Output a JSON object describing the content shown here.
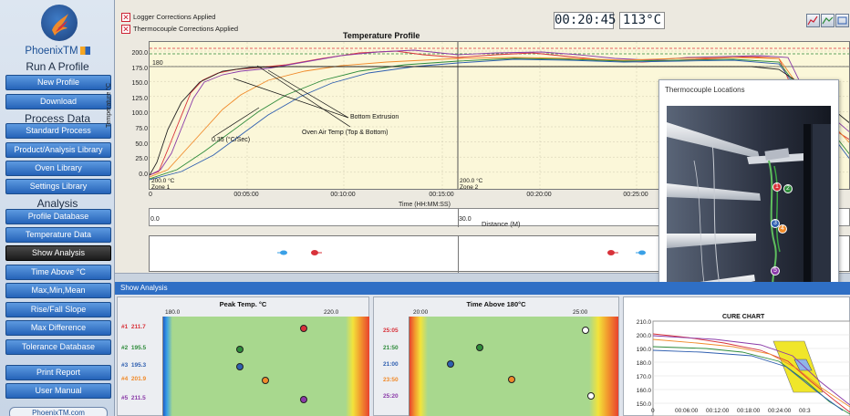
{
  "sidebar": {
    "brand": "PhoenixTM",
    "section_run": "Run A Profile",
    "new_profile": "New Profile",
    "download": "Download",
    "section_process": "Process Data",
    "standard_process": "Standard Process",
    "product_library": "Product/Analysis Library",
    "oven_library": "Oven Library",
    "settings_library": "Settings Library",
    "section_analysis": "Analysis",
    "profile_database": "Profile Database",
    "temperature_data": "Temperature Data",
    "show_analysis": "Show Analysis",
    "time_above": "Time Above °C",
    "max_min_mean": "Max,Min,Mean",
    "rise_fall": "Rise/Fall Slope",
    "max_difference": "Max Difference",
    "tolerance_db": "Tolerance Database",
    "print_report": "Print Report",
    "user_manual": "User Manual",
    "footer_link": "PhoenixTM.com"
  },
  "toolbar": {
    "logger_corrections": "Logger Corrections Applied",
    "thermocouple_corrections": "Thermocouple Corrections Applied",
    "elapsed_time": "00:20:45",
    "current_temp": "113°C"
  },
  "profile_chart": {
    "title": "Temperature Profile",
    "ylabel": "Temperature °C",
    "xlabel": "Time (HH:MM:SS)",
    "y_ticks": [
      "200.0",
      "175.0",
      "150.0",
      "125.0",
      "100.0",
      "75.0",
      "50.0",
      "25.0",
      "0.0"
    ],
    "x_ticks": [
      "0",
      "00:05:00",
      "00:10:00",
      "00:15:00",
      "00:20:00",
      "00:25:00"
    ],
    "ref_line_label": "180",
    "annotations": {
      "bottom_extrusion": "Bottom Extrusion",
      "oven_air": "Oven Air Temp (Top & Bottom)",
      "slope": "0.35 (°C/Sec)"
    },
    "zone1": {
      "temp": "200.0 °C",
      "name": "Zone 1"
    },
    "zone2": {
      "temp": "200.0 °C",
      "name": "Zone 2"
    },
    "distance_label": "Distance (M)",
    "distance_ticks": [
      "0.0",
      "30.0"
    ]
  },
  "thermocouple_window": {
    "title": "Thermocouple Locations",
    "markers": [
      "1",
      "2",
      "3",
      "4",
      "5"
    ]
  },
  "analysis": {
    "tab_title": "Show Analysis",
    "peak": {
      "title": "Peak Temp. °C",
      "scale_min": "180.0",
      "scale_max": "220.0",
      "rows": [
        {
          "id": "#1",
          "value": "211.7",
          "color": "#d8323a"
        },
        {
          "id": "#2",
          "value": "195.5",
          "color": "#2e8b3a"
        },
        {
          "id": "#3",
          "value": "195.3",
          "color": "#2f5fb0"
        },
        {
          "id": "#4",
          "value": "201.9",
          "color": "#f08a2a"
        },
        {
          "id": "#5",
          "value": "211.5",
          "color": "#8a3aa8"
        }
      ]
    },
    "time_above": {
      "title": "Time Above 180°C",
      "scale_min": "20:00",
      "scale_max": "25:00",
      "rows": [
        {
          "value": "25:05"
        },
        {
          "value": "21:50"
        },
        {
          "value": "21:00"
        },
        {
          "value": "23:50"
        },
        {
          "value": "25:20"
        }
      ]
    },
    "cure": {
      "title": "CURE CHART",
      "y_ticks": [
        "210.0",
        "200.0",
        "190.0",
        "180.0",
        "170.0",
        "160.0",
        "150.0"
      ],
      "x_ticks": [
        "0",
        "00:06:00",
        "00:12:00",
        "00:18:00",
        "00:24:00",
        "00:3"
      ]
    }
  },
  "colors": {
    "accent": "#2f6fc5",
    "tc1": "#d8323a",
    "tc2": "#2e8b3a",
    "tc3": "#2f5fb0",
    "tc4": "#f08a2a",
    "tc5": "#8a3aa8"
  }
}
